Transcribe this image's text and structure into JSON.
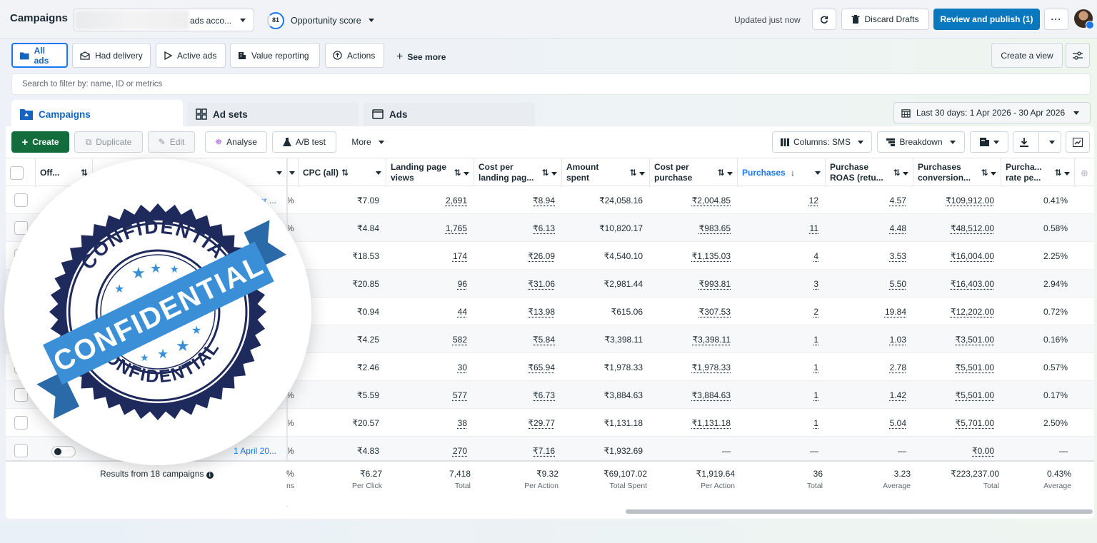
{
  "header": {
    "title": "Campaigns",
    "account_text": "ads acco...",
    "opportunity_score": "81",
    "opportunity_label": "Opportunity score",
    "updated": "Updated just now",
    "discard_label": "Discard Drafts",
    "publish_label": "Review and publish (1)",
    "more_label": "···"
  },
  "filters": {
    "chips": [
      "All ads",
      "Had delivery",
      "Active ads",
      "Value reporting",
      "Actions"
    ],
    "see_more": "See more",
    "create_view": "Create a view"
  },
  "search": {
    "placeholder": "Search to filter by: name, ID or metrics"
  },
  "tabs": {
    "campaigns": "Campaigns",
    "adsets": "Ad sets",
    "ads": "Ads"
  },
  "date_range": "Last 30 days: 1 Apr 2026 - 30 Apr 2026",
  "actions": {
    "create": "Create",
    "duplicate": "Duplicate",
    "edit": "Edit",
    "analyse": "Analyse",
    "ab_test": "A/B test",
    "more": "More",
    "columns": "Columns: SMS",
    "breakdown": "Breakdown"
  },
  "table": {
    "columns": {
      "off": "Off...",
      "cpc": "CPC (all)",
      "lpv": "Landing page views",
      "cplpv": "Cost per landing pag...",
      "spent": "Amount spent",
      "cpp": "Cost per purchase",
      "purchases": "Purchases",
      "roas": "Purchase ROAS (retu...",
      "conv": "Purchases conversion...",
      "rate": "Purcha... rate pe..."
    },
    "rows": [
      {
        "name": "Apr ...",
        "pct": "%",
        "cpc": "₹7.09",
        "lpv": "2,691",
        "cplpv": "₹8.94",
        "spent": "₹24,058.16",
        "cpp": "₹2,004.85",
        "purchases": "12",
        "roas": "4.57",
        "conv": "₹109,912.00",
        "rate": "0.41%"
      },
      {
        "name": "",
        "pct": "%",
        "cpc": "₹4.84",
        "lpv": "1,765",
        "cplpv": "₹6.13",
        "spent": "₹10,820.17",
        "cpp": "₹983.65",
        "purchases": "11",
        "roas": "4.48",
        "conv": "₹48,512.00",
        "rate": "0.58%"
      },
      {
        "name": "",
        "pct": "",
        "cpc": "₹18.53",
        "lpv": "174",
        "cplpv": "₹26.09",
        "spent": "₹4,540.10",
        "cpp": "₹1,135.03",
        "purchases": "4",
        "roas": "3.53",
        "conv": "₹16,004.00",
        "rate": "2.25%"
      },
      {
        "name": "",
        "pct": "",
        "cpc": "₹20.85",
        "lpv": "96",
        "cplpv": "₹31.06",
        "spent": "₹2,981.44",
        "cpp": "₹993.81",
        "purchases": "3",
        "roas": "5.50",
        "conv": "₹16,403.00",
        "rate": "2.94%"
      },
      {
        "name": "",
        "pct": "",
        "cpc": "₹0.94",
        "lpv": "44",
        "cplpv": "₹13.98",
        "spent": "₹615.06",
        "cpp": "₹307.53",
        "purchases": "2",
        "roas": "19.84",
        "conv": "₹12,202.00",
        "rate": "0.72%"
      },
      {
        "name": "",
        "pct": "",
        "cpc": "₹4.25",
        "lpv": "582",
        "cplpv": "₹5.84",
        "spent": "₹3,398.11",
        "cpp": "₹3,398.11",
        "purchases": "1",
        "roas": "1.03",
        "conv": "₹3,501.00",
        "rate": "0.16%"
      },
      {
        "name": "",
        "pct": "",
        "cpc": "₹2.46",
        "lpv": "30",
        "cplpv": "₹65.94",
        "spent": "₹1,978.33",
        "cpp": "₹1,978.33",
        "purchases": "1",
        "roas": "2.78",
        "conv": "₹5,501.00",
        "rate": "0.57%"
      },
      {
        "name": "",
        "pct": "%",
        "cpc": "₹5.59",
        "lpv": "577",
        "cplpv": "₹6.73",
        "spent": "₹3,884.63",
        "cpp": "₹3,884.63",
        "purchases": "1",
        "roas": "1.42",
        "conv": "₹5,501.00",
        "rate": "0.17%"
      },
      {
        "name": "",
        "pct": "%",
        "cpc": "₹20.57",
        "lpv": "38",
        "cplpv": "₹29.77",
        "spent": "₹1,131.18",
        "cpp": "₹1,131.18",
        "purchases": "1",
        "roas": "5.04",
        "conv": "₹5,701.00",
        "rate": "2.50%"
      },
      {
        "name": "1 April 20...",
        "pct": "%",
        "cpc": "₹4.83",
        "lpv": "270",
        "cplpv": "₹7.16",
        "spent": "₹1,932.69",
        "cpp": "—",
        "purchases": "—",
        "roas": "—",
        "conv": "₹0.00",
        "rate": "—"
      }
    ],
    "totals": {
      "results": "Results from 18 campaigns",
      "pct": "%",
      "pct_sub": "ns",
      "cpc": "₹6.27",
      "cpc_sub": "Per Click",
      "lpv": "7,418",
      "lpv_sub": "Total",
      "cplpv": "₹9.32",
      "cplpv_sub": "Per Action",
      "spent": "₹69,107.02",
      "spent_sub": "Total Spent",
      "cpp": "₹1,919.64",
      "cpp_sub": "Per Action",
      "purchases": "36",
      "purchases_sub": "Total",
      "roas": "3.23",
      "roas_sub": "Average",
      "conv": "₹223,237.00",
      "conv_sub": "Total",
      "rate": "0.43%",
      "rate_sub": "Average"
    }
  },
  "seal": {
    "ring_top": "CONFIDENTIAL",
    "ring_left": "CONFIDENTIAL",
    "banner": "CONFIDENTIAL",
    "ring_bottom": "CONFIDENTIAL"
  },
  "colors": {
    "accent": "#1877f2",
    "publish": "#0a78be",
    "create": "#136c3c",
    "seal_navy": "#1f2a5c",
    "seal_blue": "#3b8fd6"
  }
}
